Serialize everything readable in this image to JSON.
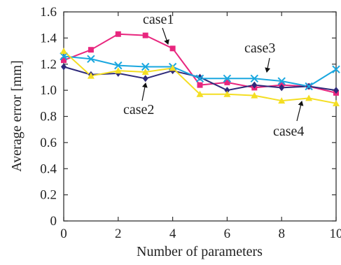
{
  "chart_data": {
    "type": "line",
    "xlabel": "Number of parameters",
    "ylabel": "Average error [mm]",
    "xlim": [
      0,
      10
    ],
    "ylim": [
      0,
      1.6
    ],
    "x_ticks": [
      "0",
      "2",
      "4",
      "6",
      "8",
      "10"
    ],
    "y_ticks": [
      "0",
      "0.2",
      "0.4",
      "0.6",
      "0.8",
      "1.0",
      "1.2",
      "1.4",
      "1.6"
    ],
    "grid": false,
    "x": [
      0,
      1,
      2,
      3,
      4,
      5,
      6,
      7,
      8,
      9,
      10
    ],
    "series": [
      {
        "name": "case1",
        "color": "#e8267e",
        "marker": "square",
        "values": [
          1.23,
          1.31,
          1.43,
          1.42,
          1.32,
          1.04,
          1.06,
          1.02,
          1.04,
          1.03,
          0.98
        ]
      },
      {
        "name": "case2",
        "color": "#2e2a7a",
        "marker": "diamond",
        "values": [
          1.18,
          1.12,
          1.13,
          1.09,
          1.15,
          1.1,
          1.0,
          1.04,
          1.02,
          1.03,
          1.0
        ]
      },
      {
        "name": "case3",
        "color": "#1aa7df",
        "marker": "x",
        "values": [
          1.26,
          1.24,
          1.19,
          1.18,
          1.18,
          1.09,
          1.09,
          1.09,
          1.07,
          1.03,
          1.16
        ]
      },
      {
        "name": "case4",
        "color": "#f4de23",
        "marker": "triangle",
        "values": [
          1.3,
          1.11,
          1.15,
          1.14,
          1.17,
          0.97,
          0.97,
          0.96,
          0.92,
          0.94,
          0.9
        ]
      }
    ]
  }
}
